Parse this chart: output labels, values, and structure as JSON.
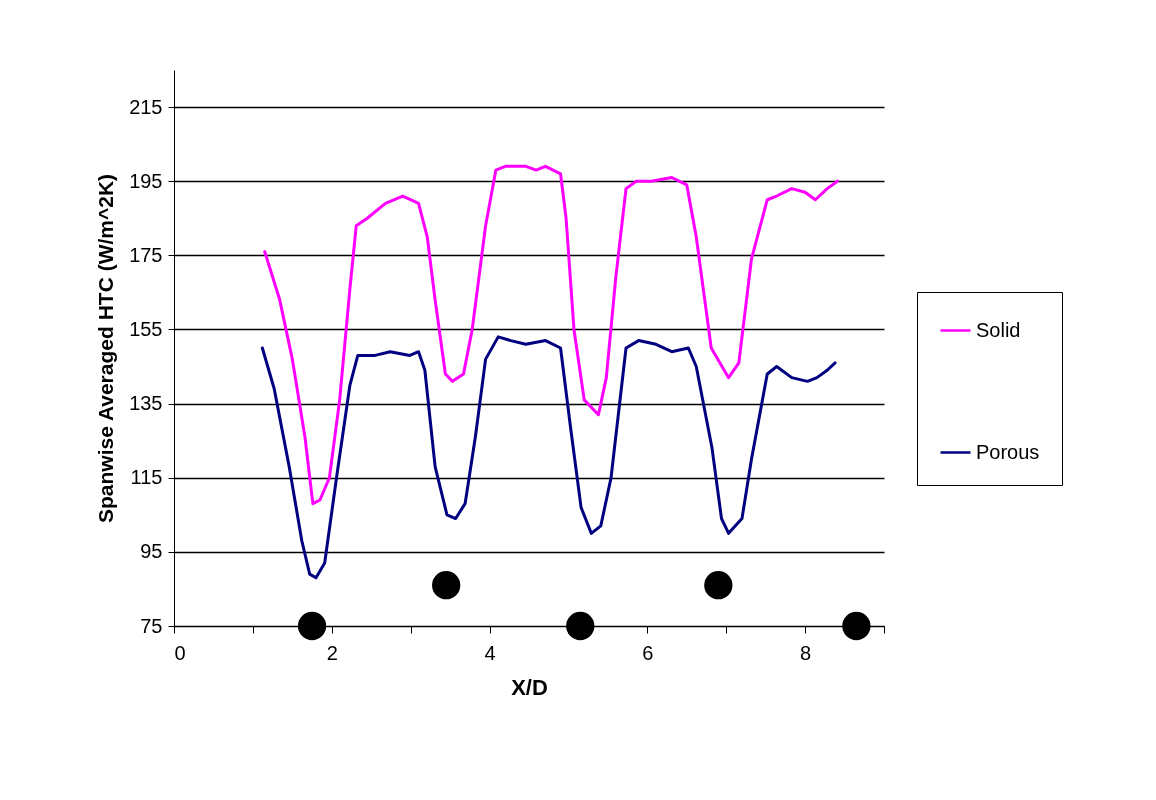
{
  "chart_data": {
    "type": "line",
    "xlabel": "X/D",
    "ylabel": "Spanwise Averaged HTC  (W/m^2K)",
    "xlim": [
      0,
      9
    ],
    "ylim": [
      75,
      225
    ],
    "xticks": [
      0,
      {
        "value": 1,
        "label": null
      },
      2,
      {
        "value": 3,
        "label": null
      },
      4,
      {
        "value": 5,
        "label": null
      },
      6,
      {
        "value": 7,
        "label": null
      },
      8,
      {
        "value": 9,
        "label": null
      }
    ],
    "yticks": [
      75,
      95,
      115,
      135,
      155,
      175,
      195,
      215
    ],
    "grid": "y",
    "legend": "right",
    "marker": "none",
    "line_style": "solid",
    "series": [
      {
        "name": "Solid",
        "color": "#ff00ff",
        "x": [
          1.15,
          1.34,
          1.5,
          1.66,
          1.76,
          1.85,
          1.97,
          2.1,
          2.23,
          2.31,
          2.45,
          2.68,
          2.9,
          3.1,
          3.21,
          3.31,
          3.44,
          3.53,
          3.67,
          3.78,
          3.95,
          4.08,
          4.2,
          4.46,
          4.59,
          4.71,
          4.9,
          4.97,
          5.07,
          5.2,
          5.38,
          5.48,
          5.6,
          5.73,
          5.86,
          6.05,
          6.31,
          6.5,
          6.62,
          6.81,
          7.03,
          7.16,
          7.32,
          7.52,
          7.64,
          7.83,
          8.0,
          8.13,
          8.28,
          8.41
        ],
        "values": [
          176,
          163,
          147,
          126,
          108,
          109,
          115,
          136,
          166,
          183,
          185,
          189,
          191,
          189,
          180,
          163,
          143,
          141,
          143,
          155,
          183,
          198,
          199,
          199,
          198,
          199,
          197,
          185,
          155,
          136,
          132,
          142,
          169,
          193,
          195,
          195,
          196,
          194,
          180,
          150,
          142,
          146,
          174,
          190,
          191,
          193,
          192,
          190,
          193,
          195
        ]
      },
      {
        "name": "Porous",
        "color": "#000080",
        "x": [
          1.12,
          1.27,
          1.46,
          1.62,
          1.72,
          1.8,
          1.91,
          2.06,
          2.23,
          2.33,
          2.55,
          2.74,
          2.99,
          3.1,
          3.18,
          3.31,
          3.46,
          3.57,
          3.69,
          3.82,
          3.95,
          4.11,
          4.27,
          4.46,
          4.71,
          4.9,
          5.03,
          5.16,
          5.29,
          5.41,
          5.54,
          5.73,
          5.89,
          6.11,
          6.31,
          6.52,
          6.62,
          6.82,
          6.94,
          7.03,
          7.2,
          7.32,
          7.52,
          7.64,
          7.83,
          8.03,
          8.15,
          8.28,
          8.38
        ],
        "values": [
          150,
          139,
          118,
          98,
          89,
          88,
          92,
          115,
          140,
          148,
          148,
          149,
          148,
          149,
          144,
          118,
          105,
          104,
          108,
          126,
          147,
          153,
          152,
          151,
          152,
          150,
          128,
          107,
          100,
          102,
          115,
          150,
          152,
          151,
          149,
          150,
          145,
          123,
          104,
          100,
          104,
          120,
          143,
          145,
          142,
          141,
          142,
          144,
          146
        ]
      },
      {
        "type": "scatter",
        "color": "#000000",
        "marker": "circle",
        "x": [
          1.75,
          3.45,
          5.15,
          6.9,
          8.65
        ],
        "values": [
          75,
          86,
          75,
          86,
          75
        ]
      }
    ]
  }
}
